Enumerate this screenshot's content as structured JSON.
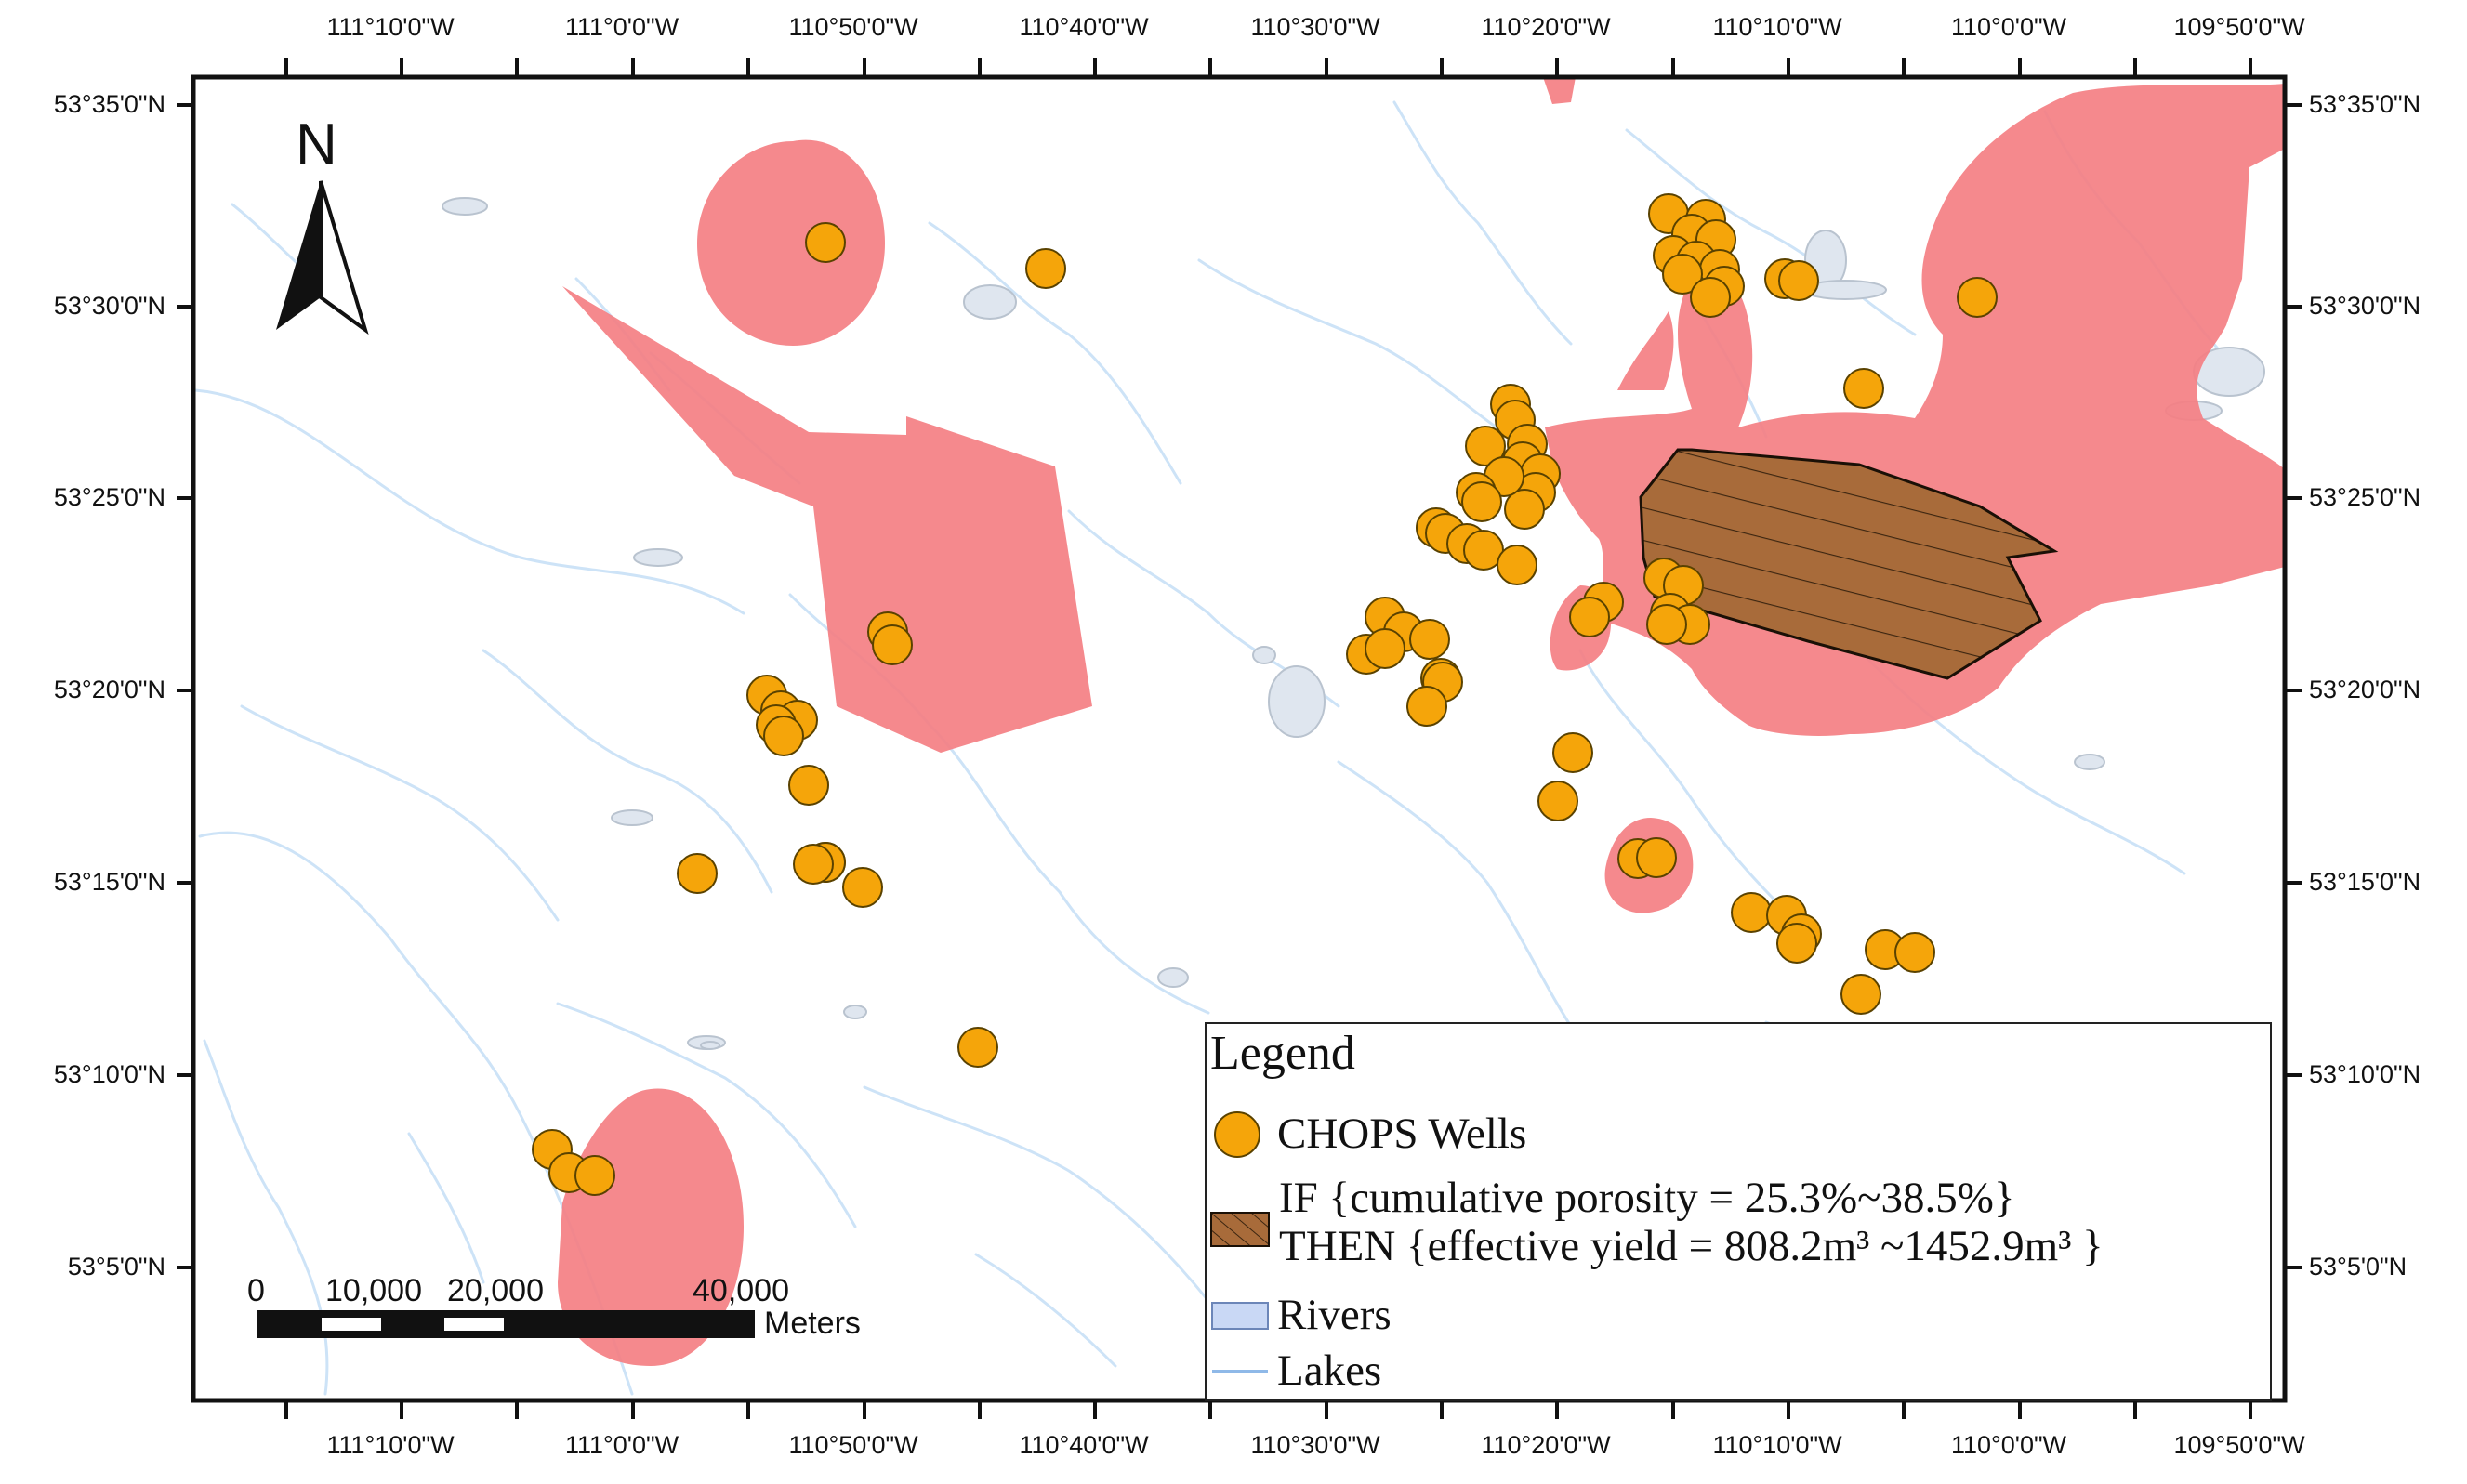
{
  "map": {
    "top_lon_labels": [
      "111°10'0\"W",
      "111°0'0\"W",
      "110°50'0\"W",
      "110°40'0\"W",
      "110°30'0\"W",
      "110°20'0\"W",
      "110°10'0\"W",
      "110°0'0\"W",
      "109°50'0\"W"
    ],
    "bottom_lon_labels": [
      "111°10'0\"W",
      "111°0'0\"W",
      "110°50'0\"W",
      "110°40'0\"W",
      "110°30'0\"W",
      "110°20'0\"W",
      "110°10'0\"W",
      "110°0'0\"W",
      "109°50'0\"W"
    ],
    "left_lat_labels": [
      "53°35'0\"N",
      "53°30'0\"N",
      "53°25'0\"N",
      "53°20'0\"N",
      "53°15'0\"N",
      "53°10'0\"N",
      "53°5'0\"N"
    ],
    "right_lat_labels": [
      "53°35'0\"N",
      "53°30'0\"N",
      "53°25'0\"N",
      "53°20'0\"N",
      "53°15'0\"N",
      "53°10'0\"N",
      "53°5'0\"N"
    ],
    "north_arrow": {
      "letter": "N",
      "icon": "north-arrow-icon"
    },
    "scale_bar": {
      "labels": [
        "0",
        "10,000",
        "20,000",
        "40,000"
      ],
      "unit": "Meters"
    },
    "colors": {
      "influence_zone": "#f47f83",
      "well_fill": "#f5a50a",
      "well_stroke": "#5a4200",
      "rule_zone_fill": "#a86b3a",
      "river_line": "#cde3f7",
      "lake_fill": "#dfe6ef",
      "frame": "#111111"
    }
  },
  "legend": {
    "title": "Legend",
    "wells": "CHOPS Wells",
    "rule_line1": "IF {cumulative porosity = 25.3%~38.5%}",
    "rule_line2": "THEN {effective yield = 808.2m³ ~1452.9m³ }",
    "rivers": "Rivers",
    "lakes": "Lakes"
  }
}
